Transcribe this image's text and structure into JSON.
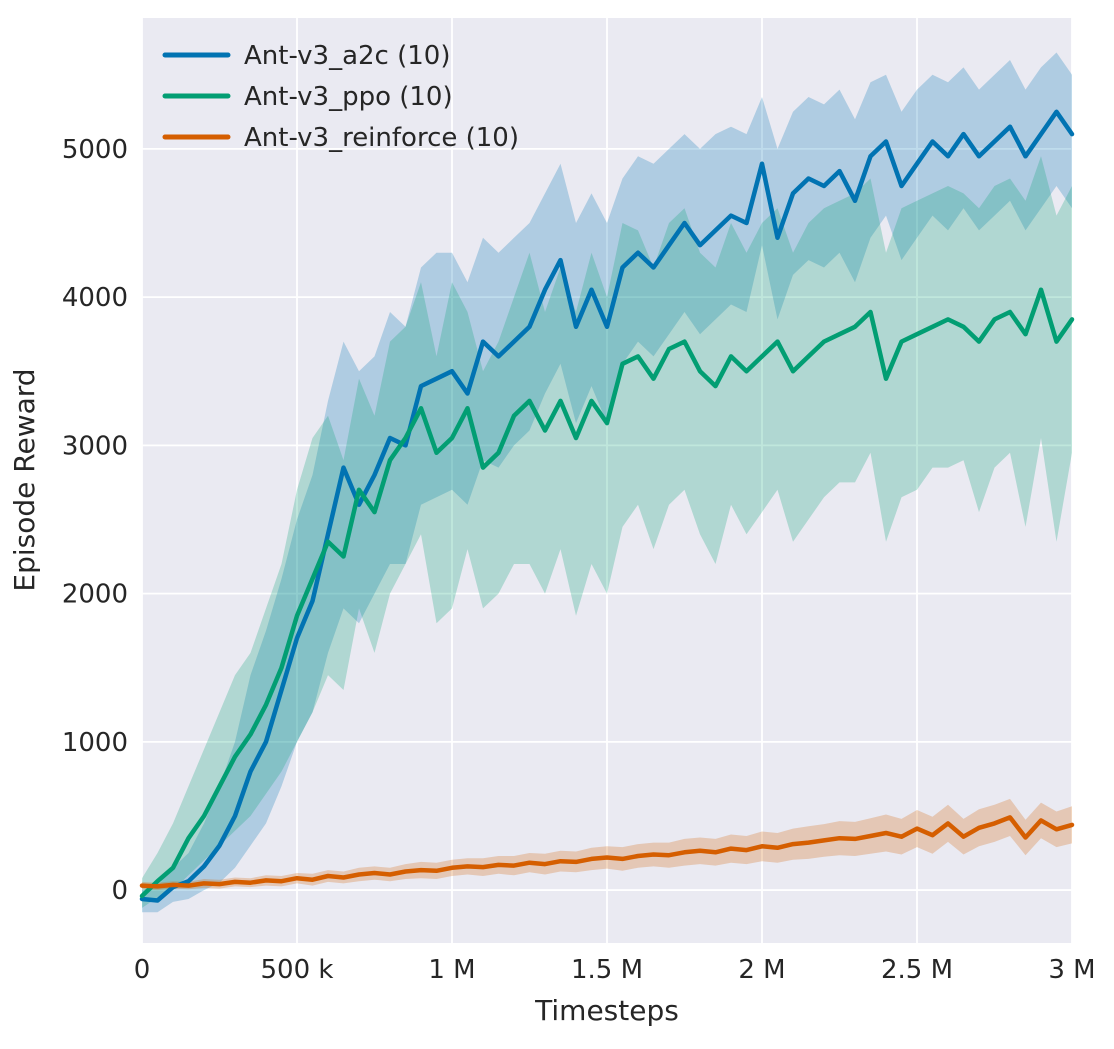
{
  "axes": {
    "xlabel": "Timesteps",
    "ylabel": "Episode Reward",
    "background_color": "#eaeaf2",
    "grid_color": "#ffffff",
    "text_color": "#262626"
  },
  "legend": {
    "position": "upper left",
    "items": [
      {
        "label": "Ant-v3_a2c (10)",
        "color": "#0173b2"
      },
      {
        "label": "Ant-v3_ppo (10)",
        "color": "#029e73"
      },
      {
        "label": "Ant-v3_reinforce (10)",
        "color": "#d55e00"
      }
    ]
  },
  "chart_data": {
    "type": "line",
    "title": "",
    "xlabel": "Timesteps",
    "ylabel": "Episode Reward",
    "xlim": [
      0,
      3000000
    ],
    "ylim": [
      -357,
      5883
    ],
    "grid": true,
    "legend_position": "upper left",
    "band_alpha": 0.25,
    "x_tick_values": [
      0,
      500000,
      1000000,
      1500000,
      2000000,
      2500000,
      3000000
    ],
    "x_tick_labels": [
      "0",
      "500 k",
      "1 M",
      "1.5 M",
      "2 M",
      "2.5 M",
      "3 M"
    ],
    "y_tick_values": [
      0,
      1000,
      2000,
      3000,
      4000,
      5000
    ],
    "y_tick_labels": [
      "0",
      "1000",
      "2000",
      "3000",
      "4000",
      "5000"
    ],
    "x": [
      0,
      50000,
      100000,
      150000,
      200000,
      250000,
      300000,
      350000,
      400000,
      450000,
      500000,
      550000,
      600000,
      650000,
      700000,
      750000,
      800000,
      850000,
      900000,
      950000,
      1000000,
      1050000,
      1100000,
      1150000,
      1200000,
      1250000,
      1300000,
      1350000,
      1400000,
      1450000,
      1500000,
      1550000,
      1600000,
      1650000,
      1700000,
      1750000,
      1800000,
      1850000,
      1900000,
      1950000,
      2000000,
      2050000,
      2100000,
      2150000,
      2200000,
      2250000,
      2300000,
      2350000,
      2400000,
      2450000,
      2500000,
      2550000,
      2600000,
      2650000,
      2700000,
      2750000,
      2800000,
      2850000,
      2900000,
      2950000,
      3000000
    ],
    "series": [
      {
        "name": "Ant-v3_a2c (10)",
        "color": "#0173b2",
        "mean": [
          -60,
          -70,
          20,
          60,
          160,
          300,
          500,
          800,
          1000,
          1350,
          1700,
          1950,
          2400,
          2850,
          2600,
          2800,
          3050,
          3000,
          3400,
          3450,
          3500,
          3350,
          3700,
          3600,
          3700,
          3800,
          4050,
          4250,
          3800,
          4050,
          3800,
          4200,
          4300,
          4200,
          4350,
          4500,
          4350,
          4450,
          4550,
          4500,
          4900,
          4400,
          4700,
          4800,
          4750,
          4850,
          4650,
          4950,
          5050,
          4750,
          4900,
          5050,
          4950,
          5100,
          4950,
          5050,
          5150,
          4950,
          5100,
          5250,
          5100
        ],
        "band_low": [
          -150,
          -150,
          -80,
          -60,
          0,
          50,
          150,
          300,
          450,
          700,
          1000,
          1200,
          1600,
          1900,
          1800,
          2000,
          2200,
          2200,
          2600,
          2650,
          2700,
          2600,
          2900,
          2850,
          3000,
          3100,
          3350,
          3550,
          3150,
          3400,
          3150,
          3550,
          3700,
          3600,
          3750,
          3900,
          3750,
          3850,
          3950,
          3900,
          4350,
          3850,
          4150,
          4250,
          4200,
          4300,
          4100,
          4400,
          4550,
          4250,
          4400,
          4550,
          4450,
          4600,
          4450,
          4550,
          4650,
          4450,
          4600,
          4750,
          4600
        ],
        "band_high": [
          0,
          30,
          150,
          250,
          450,
          700,
          1000,
          1450,
          1750,
          2100,
          2500,
          2800,
          3300,
          3700,
          3500,
          3600,
          3900,
          3800,
          4200,
          4300,
          4300,
          4100,
          4400,
          4300,
          4400,
          4500,
          4700,
          4900,
          4500,
          4700,
          4500,
          4800,
          4950,
          4900,
          5000,
          5100,
          5000,
          5100,
          5150,
          5100,
          5350,
          5000,
          5250,
          5350,
          5300,
          5400,
          5200,
          5450,
          5500,
          5250,
          5400,
          5500,
          5450,
          5550,
          5400,
          5500,
          5600,
          5400,
          5550,
          5650,
          5500
        ]
      },
      {
        "name": "Ant-v3_ppo (10)",
        "color": "#029e73",
        "mean": [
          -40,
          60,
          150,
          350,
          500,
          700,
          900,
          1050,
          1250,
          1500,
          1850,
          2100,
          2350,
          2250,
          2700,
          2550,
          2900,
          3050,
          3250,
          2950,
          3050,
          3250,
          2850,
          2950,
          3200,
          3300,
          3100,
          3300,
          3050,
          3300,
          3150,
          3550,
          3600,
          3450,
          3650,
          3700,
          3500,
          3400,
          3600,
          3500,
          3600,
          3700,
          3500,
          3600,
          3700,
          3750,
          3800,
          3900,
          3450,
          3700,
          3750,
          3800,
          3850,
          3800,
          3700,
          3850,
          3900,
          3750,
          4050,
          3700,
          3850
        ],
        "band_low": [
          -120,
          -50,
          0,
          100,
          200,
          300,
          400,
          500,
          650,
          800,
          1000,
          1200,
          1450,
          1350,
          1900,
          1600,
          2000,
          2200,
          2400,
          1800,
          1900,
          2300,
          1900,
          2000,
          2200,
          2200,
          2000,
          2300,
          1850,
          2200,
          2000,
          2450,
          2600,
          2300,
          2600,
          2700,
          2400,
          2200,
          2600,
          2400,
          2550,
          2700,
          2350,
          2500,
          2650,
          2750,
          2750,
          2950,
          2350,
          2650,
          2700,
          2850,
          2850,
          2900,
          2550,
          2850,
          2950,
          2450,
          3050,
          2350,
          2950
        ],
        "band_high": [
          80,
          250,
          450,
          700,
          950,
          1200,
          1450,
          1600,
          1900,
          2200,
          2700,
          3050,
          3200,
          2900,
          3450,
          3200,
          3700,
          3800,
          4100,
          3600,
          4100,
          3900,
          3500,
          3700,
          4000,
          4300,
          3900,
          4200,
          3900,
          4300,
          4000,
          4500,
          4450,
          4200,
          4500,
          4600,
          4300,
          4200,
          4500,
          4300,
          4500,
          4600,
          4300,
          4500,
          4600,
          4650,
          4700,
          4800,
          4300,
          4600,
          4650,
          4700,
          4750,
          4700,
          4600,
          4750,
          4800,
          4650,
          4950,
          4550,
          4750
        ]
      },
      {
        "name": "Ant-v3_reinforce (10)",
        "color": "#d55e00",
        "mean": [
          30,
          25,
          35,
          30,
          45,
          40,
          55,
          50,
          65,
          60,
          80,
          70,
          95,
          85,
          105,
          115,
          105,
          125,
          135,
          130,
          150,
          160,
          155,
          170,
          165,
          185,
          175,
          195,
          190,
          210,
          220,
          210,
          230,
          240,
          235,
          255,
          265,
          255,
          280,
          270,
          295,
          285,
          310,
          320,
          335,
          350,
          345,
          365,
          385,
          360,
          415,
          370,
          450,
          360,
          420,
          450,
          490,
          355,
          470,
          410,
          440
        ],
        "band_low": [
          5,
          0,
          10,
          5,
          15,
          10,
          25,
          20,
          30,
          25,
          45,
          30,
          55,
          45,
          60,
          70,
          60,
          75,
          80,
          75,
          95,
          105,
          95,
          110,
          100,
          120,
          105,
          125,
          120,
          135,
          145,
          130,
          150,
          160,
          150,
          165,
          175,
          165,
          185,
          175,
          195,
          185,
          205,
          210,
          225,
          235,
          230,
          245,
          260,
          240,
          290,
          245,
          325,
          240,
          295,
          325,
          365,
          235,
          350,
          290,
          315
        ],
        "band_high": [
          55,
          50,
          60,
          55,
          75,
          70,
          85,
          80,
          100,
          95,
          115,
          110,
          135,
          125,
          150,
          160,
          150,
          175,
          190,
          185,
          205,
          215,
          215,
          230,
          230,
          250,
          245,
          265,
          260,
          285,
          295,
          290,
          310,
          320,
          320,
          345,
          355,
          345,
          375,
          365,
          395,
          385,
          415,
          430,
          445,
          465,
          460,
          485,
          510,
          480,
          540,
          495,
          575,
          480,
          545,
          575,
          615,
          475,
          590,
          530,
          565
        ]
      }
    ]
  }
}
